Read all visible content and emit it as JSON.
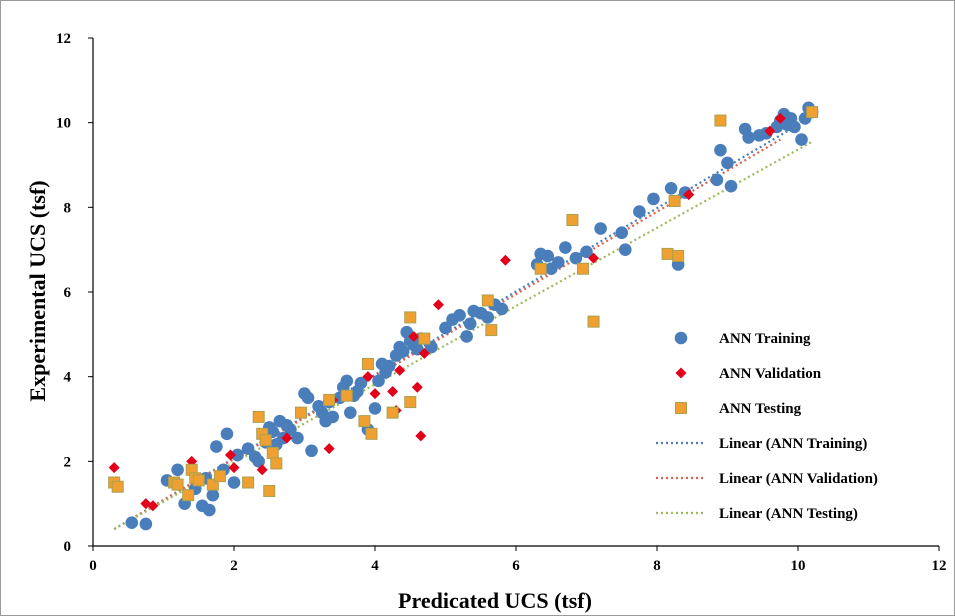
{
  "chart_data": {
    "type": "scatter",
    "title": "",
    "xlabel": "Predicated UCS (tsf)",
    "ylabel": "Experimental UCS (tsf)",
    "xlim": [
      0,
      12
    ],
    "ylim": [
      0,
      12
    ],
    "xticks": [
      "0",
      "2",
      "4",
      "6",
      "8",
      "10",
      "12"
    ],
    "yticks": [
      "0",
      "2",
      "4",
      "6",
      "8",
      "10",
      "12"
    ],
    "grid": false,
    "legend_position": "right",
    "series": [
      {
        "name": "ANN Training",
        "marker": "circle",
        "color": "#4a7ebb",
        "points": [
          [
            0.55,
            0.55
          ],
          [
            0.75,
            0.52
          ],
          [
            1.05,
            1.55
          ],
          [
            1.2,
            1.8
          ],
          [
            1.3,
            1.0
          ],
          [
            1.45,
            1.35
          ],
          [
            1.55,
            0.95
          ],
          [
            1.6,
            1.6
          ],
          [
            1.65,
            0.85
          ],
          [
            1.7,
            1.2
          ],
          [
            1.75,
            2.35
          ],
          [
            1.85,
            1.8
          ],
          [
            1.9,
            2.65
          ],
          [
            2.0,
            1.5
          ],
          [
            2.05,
            2.15
          ],
          [
            2.2,
            2.3
          ],
          [
            2.3,
            2.1
          ],
          [
            2.35,
            2.0
          ],
          [
            2.45,
            2.45
          ],
          [
            2.5,
            2.8
          ],
          [
            2.55,
            2.7
          ],
          [
            2.6,
            2.4
          ],
          [
            2.65,
            2.95
          ],
          [
            2.7,
            2.55
          ],
          [
            2.75,
            2.85
          ],
          [
            2.8,
            2.75
          ],
          [
            2.9,
            2.55
          ],
          [
            3.0,
            3.6
          ],
          [
            3.05,
            3.5
          ],
          [
            3.1,
            2.25
          ],
          [
            3.2,
            3.3
          ],
          [
            3.25,
            3.15
          ],
          [
            3.3,
            2.95
          ],
          [
            3.35,
            3.4
          ],
          [
            3.4,
            3.05
          ],
          [
            3.5,
            3.5
          ],
          [
            3.55,
            3.75
          ],
          [
            3.6,
            3.9
          ],
          [
            3.65,
            3.15
          ],
          [
            3.7,
            3.55
          ],
          [
            3.75,
            3.65
          ],
          [
            3.8,
            3.85
          ],
          [
            3.9,
            2.75
          ],
          [
            4.0,
            3.25
          ],
          [
            4.05,
            3.9
          ],
          [
            4.1,
            4.3
          ],
          [
            4.15,
            4.1
          ],
          [
            4.2,
            4.25
          ],
          [
            4.3,
            4.5
          ],
          [
            4.35,
            4.7
          ],
          [
            4.4,
            4.6
          ],
          [
            4.45,
            5.05
          ],
          [
            4.5,
            4.85
          ],
          [
            4.55,
            4.75
          ],
          [
            4.6,
            4.65
          ],
          [
            4.65,
            4.9
          ],
          [
            4.8,
            4.7
          ],
          [
            5.0,
            5.15
          ],
          [
            5.1,
            5.35
          ],
          [
            5.2,
            5.45
          ],
          [
            5.3,
            4.95
          ],
          [
            5.35,
            5.25
          ],
          [
            5.4,
            5.55
          ],
          [
            5.5,
            5.5
          ],
          [
            5.6,
            5.4
          ],
          [
            5.7,
            5.7
          ],
          [
            5.8,
            5.6
          ],
          [
            6.3,
            6.65
          ],
          [
            6.35,
            6.9
          ],
          [
            6.45,
            6.85
          ],
          [
            6.5,
            6.55
          ],
          [
            6.6,
            6.7
          ],
          [
            6.7,
            7.05
          ],
          [
            6.85,
            6.8
          ],
          [
            7.0,
            6.95
          ],
          [
            7.2,
            7.5
          ],
          [
            7.5,
            7.4
          ],
          [
            7.55,
            7.0
          ],
          [
            7.75,
            7.9
          ],
          [
            7.95,
            8.2
          ],
          [
            8.2,
            8.45
          ],
          [
            8.3,
            6.65
          ],
          [
            8.4,
            8.35
          ],
          [
            8.85,
            8.65
          ],
          [
            8.9,
            9.35
          ],
          [
            9.0,
            9.05
          ],
          [
            9.05,
            8.5
          ],
          [
            9.25,
            9.85
          ],
          [
            9.3,
            9.65
          ],
          [
            9.45,
            9.7
          ],
          [
            9.55,
            9.75
          ],
          [
            9.7,
            9.9
          ],
          [
            9.75,
            10.05
          ],
          [
            9.8,
            10.2
          ],
          [
            9.85,
            9.95
          ],
          [
            9.9,
            10.1
          ],
          [
            9.95,
            9.9
          ],
          [
            10.05,
            9.6
          ],
          [
            10.1,
            10.1
          ],
          [
            10.15,
            10.35
          ],
          [
            10.2,
            10.25
          ]
        ]
      },
      {
        "name": "ANN Validation",
        "marker": "diamond",
        "color": "#e3001b",
        "points": [
          [
            0.3,
            1.85
          ],
          [
            0.75,
            1.0
          ],
          [
            0.85,
            0.95
          ],
          [
            1.4,
            2.0
          ],
          [
            1.95,
            2.15
          ],
          [
            2.0,
            1.85
          ],
          [
            2.4,
            1.8
          ],
          [
            2.75,
            2.55
          ],
          [
            3.35,
            2.3
          ],
          [
            3.4,
            3.45
          ],
          [
            3.9,
            4.0
          ],
          [
            4.0,
            3.6
          ],
          [
            4.25,
            3.65
          ],
          [
            4.3,
            3.2
          ],
          [
            4.35,
            4.15
          ],
          [
            4.55,
            4.95
          ],
          [
            4.6,
            3.75
          ],
          [
            4.65,
            2.6
          ],
          [
            4.7,
            4.55
          ],
          [
            4.9,
            5.7
          ],
          [
            5.85,
            6.75
          ],
          [
            7.1,
            6.8
          ],
          [
            8.45,
            8.3
          ],
          [
            9.6,
            9.8
          ],
          [
            9.75,
            10.1
          ]
        ]
      },
      {
        "name": "ANN Testing",
        "marker": "square",
        "color": "#f0a030",
        "points": [
          [
            0.3,
            1.5
          ],
          [
            0.35,
            1.4
          ],
          [
            1.15,
            1.5
          ],
          [
            1.2,
            1.45
          ],
          [
            1.35,
            1.2
          ],
          [
            1.4,
            1.8
          ],
          [
            1.45,
            1.6
          ],
          [
            1.5,
            1.55
          ],
          [
            1.7,
            1.45
          ],
          [
            1.8,
            1.65
          ],
          [
            2.2,
            1.5
          ],
          [
            2.35,
            3.05
          ],
          [
            2.4,
            2.65
          ],
          [
            2.45,
            2.5
          ],
          [
            2.5,
            1.3
          ],
          [
            2.55,
            2.2
          ],
          [
            2.6,
            1.95
          ],
          [
            2.95,
            3.15
          ],
          [
            3.35,
            3.45
          ],
          [
            3.6,
            3.55
          ],
          [
            3.85,
            2.95
          ],
          [
            3.9,
            4.3
          ],
          [
            3.95,
            2.65
          ],
          [
            4.25,
            3.15
          ],
          [
            4.5,
            5.4
          ],
          [
            4.5,
            3.4
          ],
          [
            4.7,
            4.9
          ],
          [
            5.6,
            5.8
          ],
          [
            5.65,
            5.1
          ],
          [
            6.35,
            6.55
          ],
          [
            6.8,
            7.7
          ],
          [
            6.95,
            6.55
          ],
          [
            7.1,
            5.3
          ],
          [
            8.15,
            6.9
          ],
          [
            8.25,
            8.15
          ],
          [
            8.3,
            6.85
          ],
          [
            8.9,
            10.05
          ],
          [
            10.2,
            10.25
          ]
        ]
      }
    ],
    "trendlines": [
      {
        "name": "Linear (ANN Training)",
        "color": "#4a7ebb",
        "x": [
          0.3,
          9.9
        ],
        "y": [
          0.4,
          9.85
        ]
      },
      {
        "name": "Linear (ANN Validation)",
        "color": "#e06050",
        "x": [
          0.3,
          9.75
        ],
        "y": [
          0.4,
          9.6
        ]
      },
      {
        "name": "Linear (ANN Testing)",
        "color": "#9bbb59",
        "x": [
          0.3,
          10.2
        ],
        "y": [
          0.4,
          9.55
        ]
      }
    ]
  }
}
